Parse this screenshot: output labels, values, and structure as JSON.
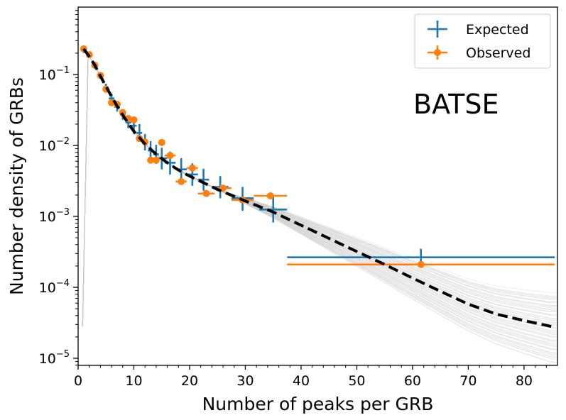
{
  "chart_data": {
    "type": "scatter",
    "title": "",
    "xlabel": "Number of peaks per GRB",
    "ylabel": "Number density of GRBs",
    "xlim": [
      0,
      86
    ],
    "ylim_log10": [
      -5.1,
      -0.05
    ],
    "yscale": "log",
    "x_ticks": [
      0,
      10,
      20,
      30,
      40,
      50,
      60,
      70,
      80
    ],
    "x_tick_labels": [
      "0",
      "10",
      "20",
      "30",
      "40",
      "50",
      "60",
      "70",
      "80"
    ],
    "y_ticks_log10": [
      -5,
      -4,
      -3,
      -2,
      -1
    ],
    "y_tick_labels": [
      {
        "base": "10",
        "exp": "−5"
      },
      {
        "base": "10",
        "exp": "−4"
      },
      {
        "base": "10",
        "exp": "−3"
      },
      {
        "base": "10",
        "exp": "−2"
      },
      {
        "base": "10",
        "exp": "−1"
      }
    ],
    "annotation": "BATSE",
    "legend": {
      "position": "top-right",
      "entries": [
        "Expected",
        "Observed"
      ]
    },
    "colors": {
      "expected": "#1f77b4",
      "observed": "#ff7f0e",
      "fit": "#000000",
      "samples": "#c8c8c8"
    },
    "fit_line": {
      "name": "best fit (broken power law)",
      "points": [
        [
          1,
          0.23
        ],
        [
          2,
          0.18
        ],
        [
          3,
          0.135
        ],
        [
          4,
          0.095
        ],
        [
          5,
          0.068
        ],
        [
          6,
          0.049
        ],
        [
          7,
          0.036
        ],
        [
          8,
          0.027
        ],
        [
          9,
          0.0205
        ],
        [
          10,
          0.0158
        ],
        [
          12,
          0.0105
        ],
        [
          14,
          0.0075
        ],
        [
          16,
          0.0057
        ],
        [
          18,
          0.0045
        ],
        [
          20,
          0.0037
        ],
        [
          25,
          0.0024
        ],
        [
          30,
          0.00165
        ],
        [
          35,
          0.00115
        ],
        [
          40,
          0.00075
        ],
        [
          45,
          0.00049
        ],
        [
          50,
          0.00032
        ],
        [
          55,
          0.00021
        ],
        [
          60,
          0.000135
        ],
        [
          65,
          8.8e-05
        ],
        [
          70,
          5.8e-05
        ],
        [
          75,
          4.2e-05
        ],
        [
          80,
          3.4e-05
        ],
        [
          85,
          2.8e-05
        ]
      ]
    },
    "sample_band": {
      "name": "posterior samples",
      "count": 60,
      "spread_start_x": 25,
      "spread_dex_at_85": [
        -0.5,
        0.45
      ]
    },
    "series": [
      {
        "name": "Expected",
        "style": "errorbar",
        "points": [
          {
            "x": 1,
            "y": 0.22,
            "xerr": 0.5,
            "ylo": 0.2,
            "yhi": 0.245
          },
          {
            "x": 2,
            "y": 0.185,
            "xerr": 0.5,
            "ylo": 0.17,
            "yhi": 0.2
          },
          {
            "x": 3,
            "y": 0.135,
            "xerr": 0.5,
            "ylo": 0.124,
            "yhi": 0.147
          },
          {
            "x": 4,
            "y": 0.097,
            "xerr": 0.5,
            "ylo": 0.088,
            "yhi": 0.107
          },
          {
            "x": 5,
            "y": 0.066,
            "xerr": 0.5,
            "ylo": 0.059,
            "yhi": 0.074
          },
          {
            "x": 6,
            "y": 0.046,
            "xerr": 0.5,
            "ylo": 0.04,
            "yhi": 0.053
          },
          {
            "x": 7,
            "y": 0.035,
            "xerr": 0.5,
            "ylo": 0.03,
            "yhi": 0.041
          },
          {
            "x": 8,
            "y": 0.027,
            "xerr": 0.5,
            "ylo": 0.023,
            "yhi": 0.032
          },
          {
            "x": 9,
            "y": 0.021,
            "xerr": 0.5,
            "ylo": 0.0175,
            "yhi": 0.026
          },
          {
            "x": 10,
            "y": 0.019,
            "xerr": 0.5,
            "ylo": 0.0145,
            "yhi": 0.025
          },
          {
            "x": 11,
            "y": 0.015,
            "xerr": 0.5,
            "ylo": 0.0115,
            "yhi": 0.02
          },
          {
            "x": 12,
            "y": 0.011,
            "xerr": 0.5,
            "ylo": 0.0085,
            "yhi": 0.0145
          },
          {
            "x": 13,
            "y": 0.0085,
            "xerr": 0.5,
            "ylo": 0.0065,
            "yhi": 0.0115
          },
          {
            "x": 14,
            "y": 0.0075,
            "xerr": 0.5,
            "ylo": 0.0055,
            "yhi": 0.0102
          },
          {
            "x": 15,
            "y": 0.0066,
            "xerr": 1.0,
            "ylo": 0.0046,
            "yhi": 0.0093
          },
          {
            "x": 16.5,
            "y": 0.0057,
            "xerr": 1.0,
            "ylo": 0.0039,
            "yhi": 0.0082
          },
          {
            "x": 18.5,
            "y": 0.0046,
            "xerr": 1.0,
            "ylo": 0.0032,
            "yhi": 0.0066
          },
          {
            "x": 20.5,
            "y": 0.0039,
            "xerr": 1.0,
            "ylo": 0.0027,
            "yhi": 0.0056
          },
          {
            "x": 22.5,
            "y": 0.0033,
            "xerr": 1.0,
            "ylo": 0.0023,
            "yhi": 0.0047
          },
          {
            "x": 25.5,
            "y": 0.0026,
            "xerr": 1.5,
            "ylo": 0.0018,
            "yhi": 0.0037
          },
          {
            "x": 29.5,
            "y": 0.0018,
            "xerr": 2.0,
            "ylo": 0.0012,
            "yhi": 0.0026
          },
          {
            "x": 35,
            "y": 0.00125,
            "xerr": 2.5,
            "ylo": 0.00082,
            "yhi": 0.0019
          },
          {
            "x": 61.5,
            "y": 0.000265,
            "xerr": 24,
            "ylo": 0.000195,
            "yhi": 0.00035
          }
        ]
      },
      {
        "name": "Observed",
        "style": "errorbar-marker",
        "points": [
          {
            "x": 1,
            "y": 0.23,
            "xerr": 0.5
          },
          {
            "x": 2,
            "y": 0.19,
            "xerr": 0.5
          },
          {
            "x": 3,
            "y": 0.135,
            "xerr": 0.5
          },
          {
            "x": 4,
            "y": 0.097,
            "xerr": 0.5
          },
          {
            "x": 5,
            "y": 0.062,
            "xerr": 0.5
          },
          {
            "x": 6,
            "y": 0.04,
            "xerr": 0.5
          },
          {
            "x": 7,
            "y": 0.038,
            "xerr": 0.5
          },
          {
            "x": 8,
            "y": 0.029,
            "xerr": 0.5
          },
          {
            "x": 9,
            "y": 0.024,
            "xerr": 0.5
          },
          {
            "x": 10,
            "y": 0.023,
            "xerr": 0.5
          },
          {
            "x": 11,
            "y": 0.0125,
            "xerr": 0.5
          },
          {
            "x": 12,
            "y": 0.0112,
            "xerr": 0.5
          },
          {
            "x": 13,
            "y": 0.0062,
            "xerr": 0.5
          },
          {
            "x": 14,
            "y": 0.0062,
            "xerr": 0.5
          },
          {
            "x": 15,
            "y": 0.011,
            "xerr": 0.5
          },
          {
            "x": 16.5,
            "y": 0.0072,
            "xerr": 1.0
          },
          {
            "x": 18.5,
            "y": 0.0031,
            "xerr": 1.0
          },
          {
            "x": 20.5,
            "y": 0.0048,
            "xerr": 1.0
          },
          {
            "x": 23,
            "y": 0.0021,
            "xerr": 1.5
          },
          {
            "x": 26,
            "y": 0.0025,
            "xerr": 1.5
          },
          {
            "x": 29.5,
            "y": 0.0017,
            "xerr": 2.0
          },
          {
            "x": 34.5,
            "y": 0.00195,
            "xerr": 3.0
          },
          {
            "x": 61.5,
            "y": 0.00021,
            "xerr": 24
          }
        ]
      }
    ]
  }
}
